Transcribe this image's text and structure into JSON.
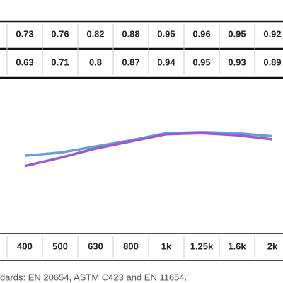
{
  "chart_data": {
    "type": "line",
    "categories": [
      "400",
      "500",
      "630",
      "800",
      "1k",
      "1.25k",
      "1.6k",
      "2k"
    ],
    "series": [
      {
        "color": "#6a9fd6",
        "values": [
          0.73,
          0.76,
          0.82,
          0.88,
          0.95,
          0.96,
          0.95,
          0.92
        ]
      },
      {
        "color": "#9a5ccb",
        "values": [
          0.63,
          0.71,
          0.8,
          0.87,
          0.94,
          0.95,
          0.93,
          0.89
        ]
      }
    ],
    "ylim": [
      0,
      1
    ],
    "footnote": "dards: EN 20654, ASTM C423 and EN 11654."
  }
}
